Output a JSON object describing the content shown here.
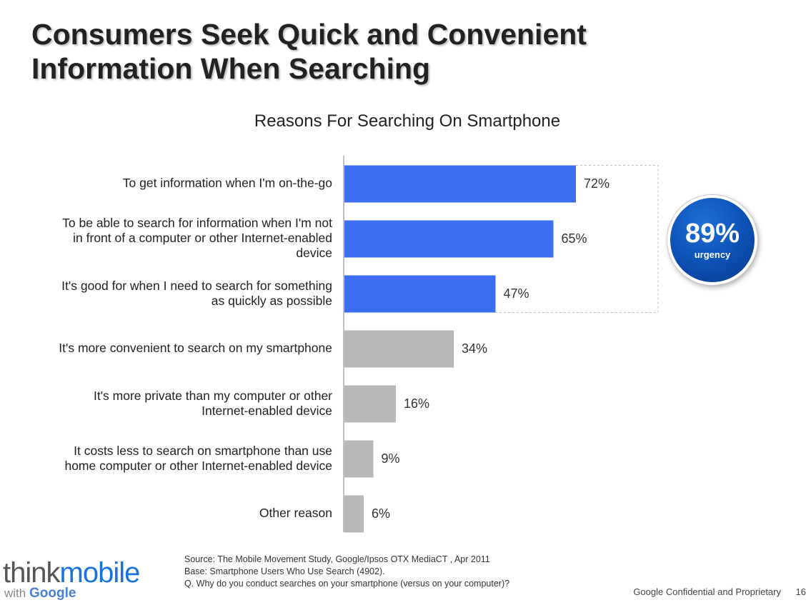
{
  "slide": {
    "title_line1": "Consumers Seek Quick and Convenient",
    "title_line2": "Information When Searching"
  },
  "chart_data": {
    "type": "bar",
    "orientation": "horizontal",
    "title": "Reasons For Searching On Smartphone",
    "categories": [
      "To get information when I'm on-the-go",
      "To be able to search for information when I'm not in front of a computer or other Internet-enabled device",
      "It's good for when I need to search for something as quickly as possible",
      "It's more convenient to search on my smartphone",
      "It's more private than my computer or other Internet-enabled device",
      "It costs less to search on smartphone than use home computer or other Internet-enabled device",
      "Other reason"
    ],
    "category_lines": [
      [
        "To get information when I'm on-the-go"
      ],
      [
        "To be able to search for information when I'm not",
        "in front of a computer or other Internet-enabled",
        "device"
      ],
      [
        "It's good for when I need to search for something",
        "as quickly as possible"
      ],
      [
        "It's more convenient to search on my smartphone"
      ],
      [
        "It's more private than my computer or other",
        "Internet-enabled device"
      ],
      [
        "It costs less to search on smartphone than use",
        "home computer or other Internet-enabled device"
      ],
      [
        "Other reason"
      ]
    ],
    "values": [
      72,
      65,
      47,
      34,
      16,
      9,
      6
    ],
    "value_labels": [
      "72%",
      "65%",
      "47%",
      "34%",
      "16%",
      "9%",
      "6%"
    ],
    "highlighted": [
      true,
      true,
      true,
      false,
      false,
      false,
      false
    ],
    "xlim": [
      0,
      100
    ],
    "unit": "%",
    "grid": false,
    "colors": {
      "highlight": "#3d6ef0",
      "other": "#b8b8b8",
      "axis": "#aaaaaa",
      "bracket": "#bdbdbd"
    },
    "callout": {
      "value": "89%",
      "label": "urgency"
    }
  },
  "footer": {
    "source": "Source: The Mobile Movement Study, Google/Ipsos OTX MediaCT , Apr 2011",
    "base": "Base:   Smartphone Users  Who Use Search (4902).",
    "question": "Q.  Why do you conduct searches on your smartphone (versus on your computer)?",
    "confidential": "Google Confidential and Proprietary",
    "page_number": "16"
  },
  "logo": {
    "think": "think",
    "mobile": "mobile",
    "with": "with",
    "google": "Google"
  }
}
